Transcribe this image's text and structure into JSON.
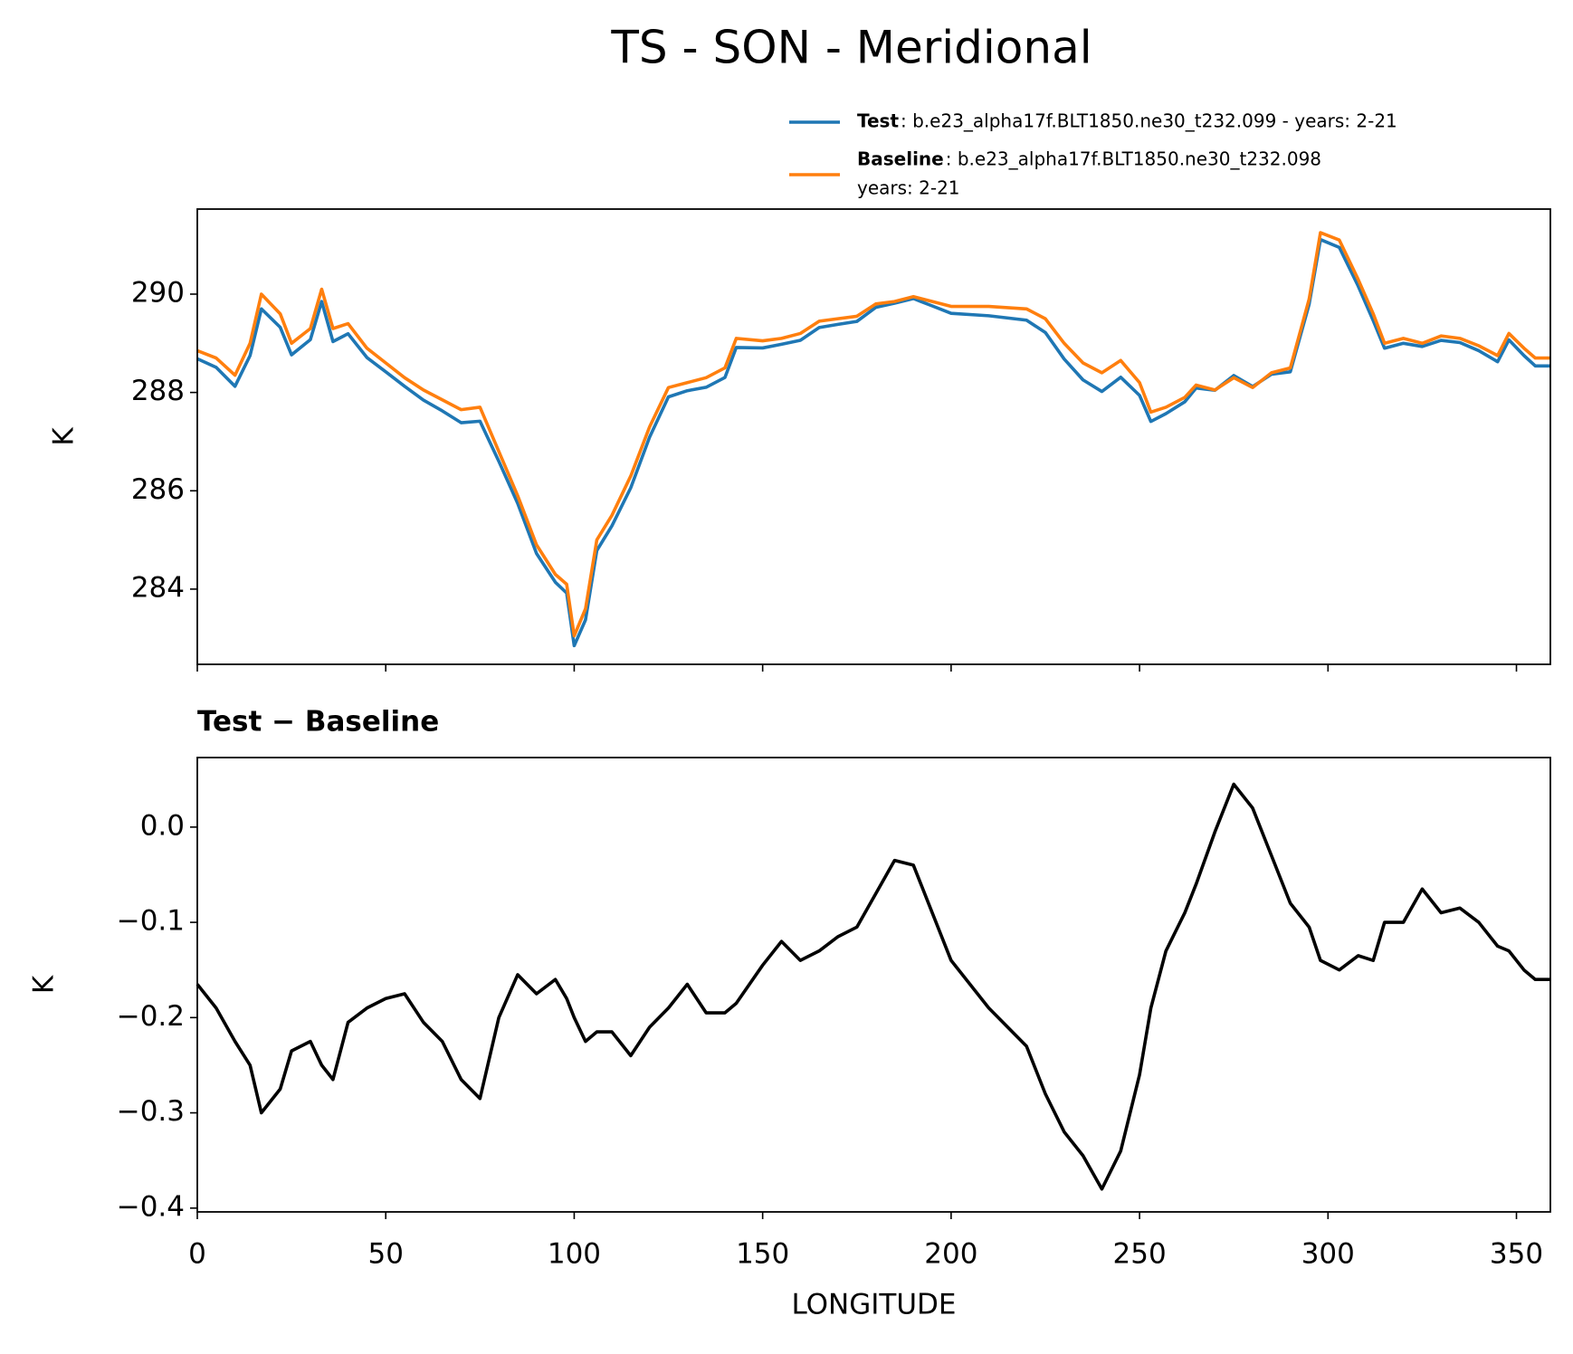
{
  "title": "TS - SON - Meridional",
  "chart_data": [
    {
      "type": "line",
      "ylabel": "K",
      "x": [
        0,
        5,
        10,
        14,
        17,
        22,
        25,
        30,
        33,
        36,
        40,
        45,
        50,
        55,
        60,
        65,
        70,
        75,
        80,
        85,
        90,
        95,
        98,
        100,
        103,
        106,
        110,
        115,
        120,
        125,
        130,
        135,
        140,
        143,
        150,
        155,
        160,
        165,
        170,
        175,
        180,
        185,
        190,
        195,
        200,
        210,
        220,
        225,
        230,
        235,
        240,
        245,
        250,
        253,
        257,
        262,
        265,
        270,
        275,
        280,
        285,
        290,
        295,
        298,
        303,
        308,
        312,
        315,
        320,
        325,
        330,
        335,
        340,
        345,
        348,
        352,
        355,
        359
      ],
      "series": [
        {
          "name": "Test",
          "description": [
            ": b.e23_alpha17f.BLT1850.ne30_t232.099 - years: 2-21"
          ],
          "color": "#1f77b4",
          "values": [
            288.685,
            288.51,
            288.125,
            288.75,
            289.7,
            289.325,
            288.765,
            289.075,
            289.85,
            289.035,
            289.195,
            288.71,
            288.42,
            288.125,
            287.845,
            287.625,
            287.385,
            287.415,
            286.6,
            285.745,
            284.725,
            284.14,
            283.92,
            282.85,
            283.375,
            284.785,
            285.285,
            286.06,
            287.09,
            287.91,
            288.035,
            288.105,
            288.305,
            288.915,
            288.905,
            288.98,
            289.06,
            289.32,
            289.385,
            289.445,
            289.73,
            289.815,
            289.91,
            289.76,
            289.61,
            289.56,
            289.47,
            289.22,
            288.68,
            288.255,
            288.02,
            288.31,
            287.94,
            287.41,
            287.57,
            287.81,
            288.09,
            288.045,
            288.345,
            288.12,
            288.37,
            288.42,
            289.795,
            291.11,
            290.95,
            290.165,
            289.46,
            288.9,
            289.0,
            288.935,
            289.06,
            289.015,
            288.85,
            288.625,
            289.07,
            288.75,
            288.54,
            288.54
          ]
        },
        {
          "name": "Baseline",
          "description": [
            ": b.e23_alpha17f.BLT1850.ne30_t232.098",
            "years: 2-21"
          ],
          "color": "#ff7f0e",
          "values": [
            288.85,
            288.7,
            288.35,
            289.0,
            290.0,
            289.6,
            289.0,
            289.3,
            290.1,
            289.3,
            289.4,
            288.9,
            288.6,
            288.3,
            288.05,
            287.85,
            287.65,
            287.7,
            286.8,
            285.9,
            284.9,
            284.3,
            284.1,
            283.05,
            283.6,
            285.0,
            285.5,
            286.3,
            287.3,
            288.1,
            288.2,
            288.3,
            288.5,
            289.1,
            289.05,
            289.1,
            289.2,
            289.45,
            289.5,
            289.55,
            289.8,
            289.85,
            289.95,
            289.85,
            289.75,
            289.75,
            289.7,
            289.5,
            289.0,
            288.6,
            288.4,
            288.65,
            288.2,
            287.6,
            287.7,
            287.9,
            288.15,
            288.05,
            288.3,
            288.1,
            288.4,
            288.5,
            289.9,
            291.25,
            291.1,
            290.3,
            289.6,
            289.0,
            289.1,
            289.0,
            289.15,
            289.1,
            288.95,
            288.75,
            289.2,
            288.9,
            288.7,
            288.7
          ]
        }
      ],
      "xlim": [
        0,
        359
      ],
      "xticks": [
        0,
        50,
        100,
        150,
        200,
        250,
        300,
        350
      ],
      "xtick_labels": false,
      "ylim": [
        282.47,
        291.73
      ],
      "yticks": [
        284,
        286,
        288,
        290
      ],
      "legend": "upper right"
    },
    {
      "type": "line",
      "title": "Test − Baseline",
      "xlabel": "LONGITUDE",
      "ylabel": "K",
      "x": [
        0,
        5,
        10,
        14,
        17,
        22,
        25,
        30,
        33,
        36,
        40,
        45,
        50,
        55,
        60,
        65,
        70,
        75,
        80,
        85,
        90,
        95,
        98,
        100,
        103,
        106,
        110,
        115,
        120,
        125,
        130,
        135,
        140,
        143,
        150,
        155,
        160,
        165,
        170,
        175,
        180,
        185,
        190,
        195,
        200,
        210,
        220,
        225,
        230,
        235,
        240,
        245,
        250,
        253,
        257,
        262,
        265,
        270,
        275,
        280,
        285,
        290,
        295,
        298,
        303,
        308,
        312,
        315,
        320,
        325,
        330,
        335,
        340,
        345,
        348,
        352,
        355,
        359
      ],
      "series": [
        {
          "color": "#000000",
          "values": [
            -0.165,
            -0.19,
            -0.225,
            -0.25,
            -0.3,
            -0.275,
            -0.235,
            -0.225,
            -0.25,
            -0.265,
            -0.205,
            -0.19,
            -0.18,
            -0.175,
            -0.205,
            -0.225,
            -0.265,
            -0.285,
            -0.2,
            -0.155,
            -0.175,
            -0.16,
            -0.18,
            -0.2,
            -0.225,
            -0.215,
            -0.215,
            -0.24,
            -0.21,
            -0.19,
            -0.165,
            -0.195,
            -0.195,
            -0.185,
            -0.145,
            -0.12,
            -0.14,
            -0.13,
            -0.115,
            -0.105,
            -0.07,
            -0.035,
            -0.04,
            -0.09,
            -0.14,
            -0.19,
            -0.23,
            -0.28,
            -0.32,
            -0.345,
            -0.38,
            -0.34,
            -0.26,
            -0.19,
            -0.13,
            -0.09,
            -0.06,
            -0.005,
            0.045,
            0.02,
            -0.03,
            -0.08,
            -0.105,
            -0.14,
            -0.15,
            -0.135,
            -0.14,
            -0.1,
            -0.1,
            -0.065,
            -0.09,
            -0.085,
            -0.1,
            -0.125,
            -0.13,
            -0.15,
            -0.16,
            -0.16
          ]
        }
      ],
      "xlim": [
        0,
        359
      ],
      "xticks": [
        0,
        50,
        100,
        150,
        200,
        250,
        300,
        350
      ],
      "xtick_labels": true,
      "ylim": [
        -0.404,
        0.073
      ],
      "yticks": [
        {
          "value": -0.4,
          "label": "−0.4"
        },
        {
          "value": -0.3,
          "label": "−0.3"
        },
        {
          "value": -0.2,
          "label": "−0.2"
        },
        {
          "value": -0.1,
          "label": "−0.1"
        },
        {
          "value": 0,
          "label": "0.0"
        }
      ]
    }
  ]
}
